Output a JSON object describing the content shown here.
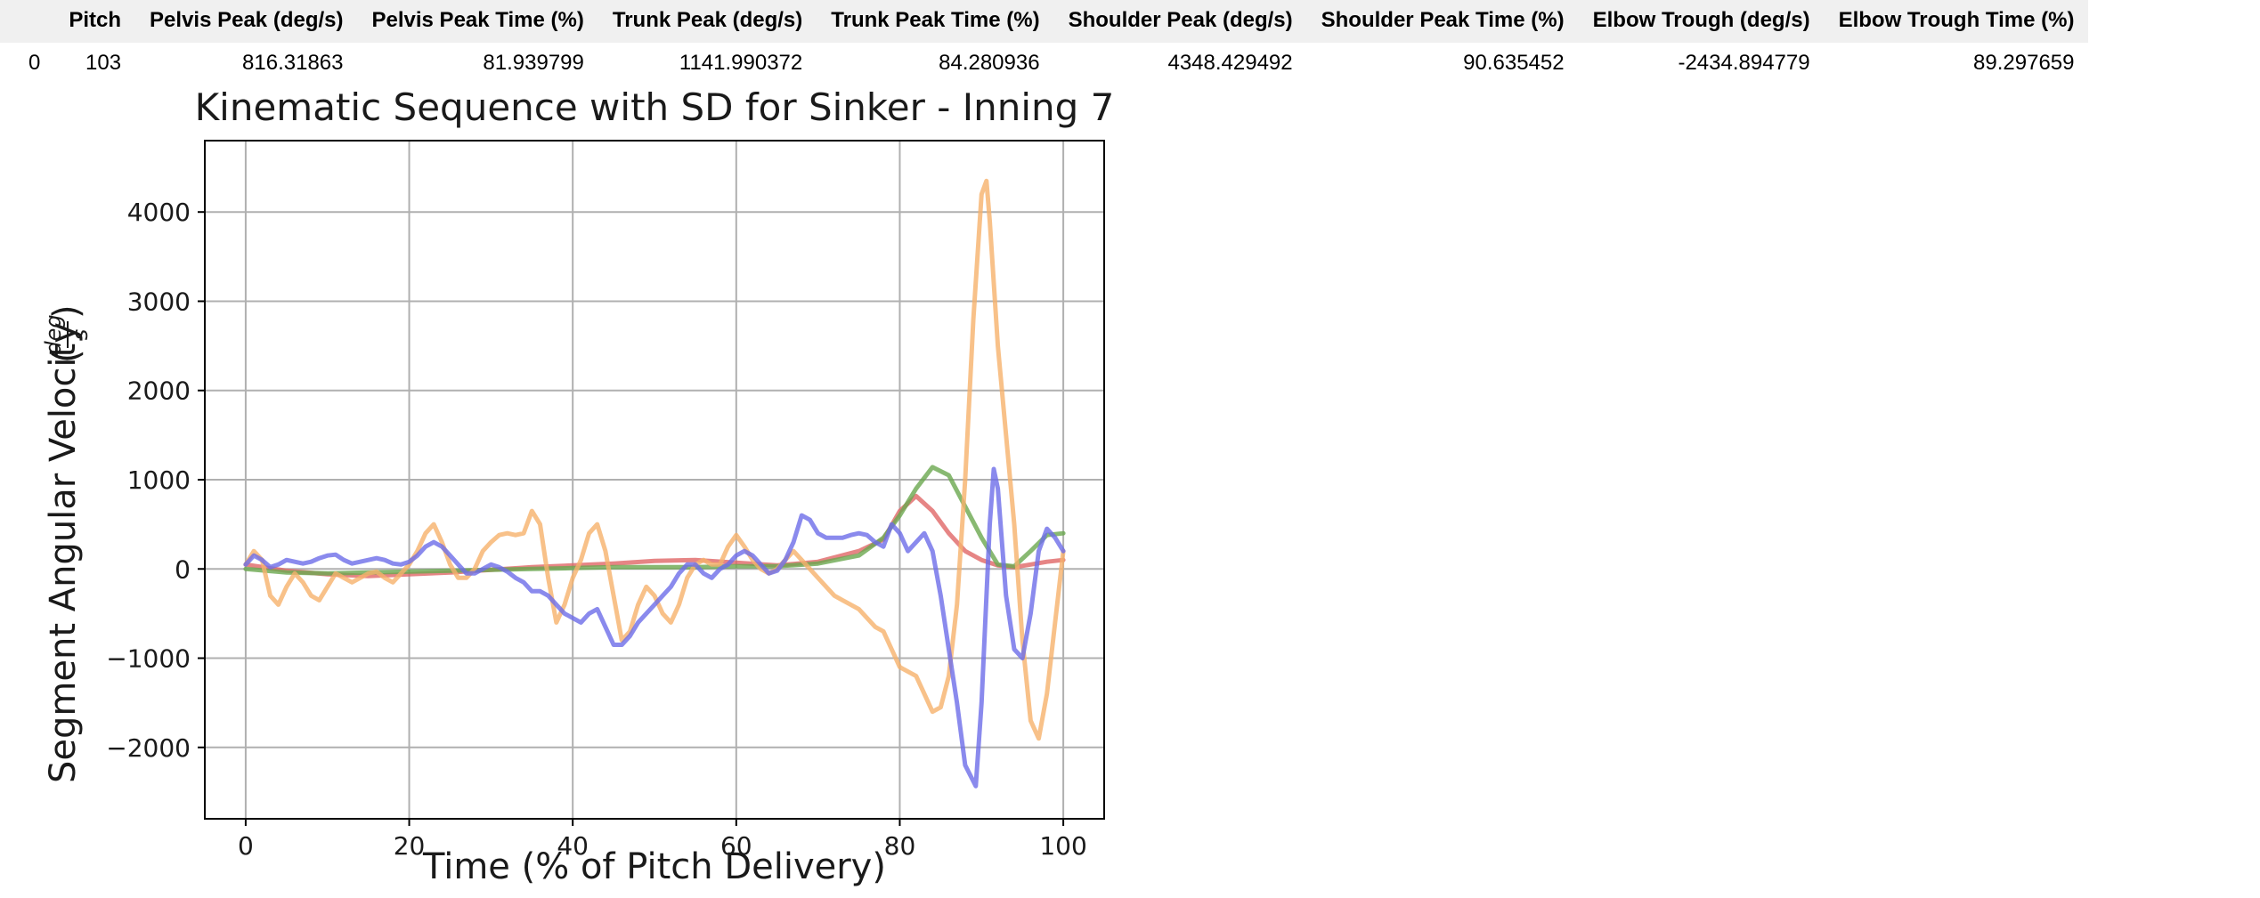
{
  "table": {
    "columns": [
      "",
      "Pitch",
      "Pelvis Peak (deg/s)",
      "Pelvis Peak Time (%)",
      "Trunk Peak (deg/s)",
      "Trunk Peak Time (%)",
      "Shoulder Peak (deg/s)",
      "Shoulder Peak Time (%)",
      "Elbow Trough (deg/s)",
      "Elbow Trough Time (%)"
    ],
    "rows": [
      [
        "0",
        "103",
        "816.31863",
        "81.939799",
        "1141.990372",
        "84.280936",
        "4348.429492",
        "90.635452",
        "-2434.894779",
        "89.297659"
      ]
    ]
  },
  "chart_data": {
    "type": "line",
    "title": "Kinematic Sequence with SD for Sinker - Inning 7",
    "xlabel": "Time (% of Pitch Delivery)",
    "ylabel": "Segment Angular Velocity",
    "ylabel_unit": {
      "numerator": "deg",
      "denominator": "s"
    },
    "xlim": [
      -5,
      105
    ],
    "ylim": [
      -2800,
      4800
    ],
    "xticks": [
      0,
      20,
      40,
      60,
      80,
      100
    ],
    "xtick_labels": [
      "0",
      "20",
      "40",
      "60",
      "80",
      "100"
    ],
    "yticks": [
      -2000,
      -1000,
      0,
      1000,
      2000,
      3000,
      4000
    ],
    "ytick_labels": [
      "−2000",
      "−1000",
      "0",
      "1000",
      "2000",
      "3000",
      "4000"
    ],
    "grid": true,
    "series": [
      {
        "color": "#e06666",
        "points": [
          [
            0,
            50
          ],
          [
            5,
            -20
          ],
          [
            10,
            -60
          ],
          [
            15,
            -80
          ],
          [
            20,
            -60
          ],
          [
            25,
            -40
          ],
          [
            30,
            -10
          ],
          [
            35,
            20
          ],
          [
            40,
            40
          ],
          [
            45,
            60
          ],
          [
            50,
            90
          ],
          [
            55,
            100
          ],
          [
            60,
            70
          ],
          [
            65,
            40
          ],
          [
            70,
            80
          ],
          [
            75,
            200
          ],
          [
            78,
            330
          ],
          [
            80,
            650
          ],
          [
            82,
            816
          ],
          [
            84,
            650
          ],
          [
            86,
            400
          ],
          [
            88,
            200
          ],
          [
            90,
            100
          ],
          [
            92,
            40
          ],
          [
            94,
            20
          ],
          [
            96,
            50
          ],
          [
            98,
            80
          ],
          [
            100,
            100
          ]
        ]
      },
      {
        "color": "#6aa84f",
        "points": [
          [
            0,
            0
          ],
          [
            5,
            -40
          ],
          [
            10,
            -50
          ],
          [
            15,
            -40
          ],
          [
            20,
            -30
          ],
          [
            25,
            -20
          ],
          [
            30,
            -10
          ],
          [
            35,
            0
          ],
          [
            40,
            10
          ],
          [
            45,
            20
          ],
          [
            50,
            20
          ],
          [
            55,
            20
          ],
          [
            60,
            30
          ],
          [
            65,
            30
          ],
          [
            70,
            60
          ],
          [
            75,
            150
          ],
          [
            78,
            350
          ],
          [
            80,
            600
          ],
          [
            82,
            900
          ],
          [
            84,
            1141
          ],
          [
            86,
            1050
          ],
          [
            88,
            700
          ],
          [
            90,
            350
          ],
          [
            92,
            50
          ],
          [
            94,
            30
          ],
          [
            96,
            200
          ],
          [
            98,
            380
          ],
          [
            100,
            400
          ]
        ]
      },
      {
        "color": "#f6b26b",
        "points": [
          [
            0,
            50
          ],
          [
            1,
            200
          ],
          [
            2,
            100
          ],
          [
            3,
            -300
          ],
          [
            4,
            -400
          ],
          [
            5,
            -200
          ],
          [
            6,
            -50
          ],
          [
            7,
            -150
          ],
          [
            8,
            -300
          ],
          [
            9,
            -350
          ],
          [
            10,
            -200
          ],
          [
            11,
            -50
          ],
          [
            12,
            -100
          ],
          [
            13,
            -150
          ],
          [
            14,
            -100
          ],
          [
            15,
            -50
          ],
          [
            16,
            -30
          ],
          [
            17,
            -100
          ],
          [
            18,
            -150
          ],
          [
            19,
            -50
          ],
          [
            20,
            50
          ],
          [
            21,
            200
          ],
          [
            22,
            400
          ],
          [
            23,
            500
          ],
          [
            24,
            300
          ],
          [
            25,
            50
          ],
          [
            26,
            -100
          ],
          [
            27,
            -100
          ],
          [
            28,
            0
          ],
          [
            29,
            200
          ],
          [
            30,
            300
          ],
          [
            31,
            380
          ],
          [
            32,
            400
          ],
          [
            33,
            380
          ],
          [
            34,
            400
          ],
          [
            35,
            650
          ],
          [
            36,
            500
          ],
          [
            37,
            -100
          ],
          [
            38,
            -600
          ],
          [
            39,
            -400
          ],
          [
            40,
            -100
          ],
          [
            41,
            100
          ],
          [
            42,
            400
          ],
          [
            43,
            500
          ],
          [
            44,
            200
          ],
          [
            45,
            -300
          ],
          [
            46,
            -800
          ],
          [
            47,
            -700
          ],
          [
            48,
            -400
          ],
          [
            49,
            -200
          ],
          [
            50,
            -300
          ],
          [
            51,
            -500
          ],
          [
            52,
            -600
          ],
          [
            53,
            -400
          ],
          [
            54,
            -100
          ],
          [
            55,
            50
          ],
          [
            56,
            100
          ],
          [
            57,
            50
          ],
          [
            58,
            50
          ],
          [
            59,
            250
          ],
          [
            60,
            380
          ],
          [
            61,
            250
          ],
          [
            62,
            100
          ],
          [
            63,
            0
          ],
          [
            64,
            -50
          ],
          [
            65,
            0
          ],
          [
            66,
            100
          ],
          [
            67,
            200
          ],
          [
            68,
            100
          ],
          [
            69,
            0
          ],
          [
            70,
            -100
          ],
          [
            71,
            -200
          ],
          [
            72,
            -300
          ],
          [
            73,
            -350
          ],
          [
            74,
            -400
          ],
          [
            75,
            -450
          ],
          [
            76,
            -550
          ],
          [
            77,
            -650
          ],
          [
            78,
            -700
          ],
          [
            79,
            -900
          ],
          [
            80,
            -1100
          ],
          [
            81,
            -1150
          ],
          [
            82,
            -1200
          ],
          [
            83,
            -1400
          ],
          [
            84,
            -1600
          ],
          [
            85,
            -1550
          ],
          [
            86,
            -1200
          ],
          [
            87,
            -400
          ],
          [
            88,
            1000
          ],
          [
            89,
            2800
          ],
          [
            90,
            4200
          ],
          [
            90.6,
            4348
          ],
          [
            91,
            3900
          ],
          [
            92,
            2500
          ],
          [
            93,
            1500
          ],
          [
            94,
            500
          ],
          [
            95,
            -800
          ],
          [
            96,
            -1700
          ],
          [
            97,
            -1900
          ],
          [
            98,
            -1400
          ],
          [
            99,
            -600
          ],
          [
            100,
            200
          ]
        ]
      },
      {
        "color": "#6d6de8",
        "points": [
          [
            0,
            50
          ],
          [
            1,
            150
          ],
          [
            2,
            100
          ],
          [
            3,
            20
          ],
          [
            4,
            50
          ],
          [
            5,
            100
          ],
          [
            6,
            80
          ],
          [
            7,
            60
          ],
          [
            8,
            80
          ],
          [
            9,
            120
          ],
          [
            10,
            150
          ],
          [
            11,
            160
          ],
          [
            12,
            100
          ],
          [
            13,
            60
          ],
          [
            14,
            80
          ],
          [
            15,
            100
          ],
          [
            16,
            120
          ],
          [
            17,
            100
          ],
          [
            18,
            60
          ],
          [
            19,
            50
          ],
          [
            20,
            80
          ],
          [
            21,
            150
          ],
          [
            22,
            250
          ],
          [
            23,
            300
          ],
          [
            24,
            250
          ],
          [
            25,
            150
          ],
          [
            26,
            50
          ],
          [
            27,
            -50
          ],
          [
            28,
            -50
          ],
          [
            29,
            0
          ],
          [
            30,
            50
          ],
          [
            31,
            20
          ],
          [
            32,
            -30
          ],
          [
            33,
            -100
          ],
          [
            34,
            -150
          ],
          [
            35,
            -250
          ],
          [
            36,
            -250
          ],
          [
            37,
            -300
          ],
          [
            38,
            -400
          ],
          [
            39,
            -500
          ],
          [
            40,
            -550
          ],
          [
            41,
            -600
          ],
          [
            42,
            -500
          ],
          [
            43,
            -450
          ],
          [
            44,
            -650
          ],
          [
            45,
            -850
          ],
          [
            46,
            -850
          ],
          [
            47,
            -750
          ],
          [
            48,
            -600
          ],
          [
            49,
            -500
          ],
          [
            50,
            -400
          ],
          [
            51,
            -300
          ],
          [
            52,
            -200
          ],
          [
            53,
            -50
          ],
          [
            54,
            50
          ],
          [
            55,
            50
          ],
          [
            56,
            -50
          ],
          [
            57,
            -100
          ],
          [
            58,
            0
          ],
          [
            59,
            50
          ],
          [
            60,
            150
          ],
          [
            61,
            200
          ],
          [
            62,
            150
          ],
          [
            63,
            50
          ],
          [
            64,
            -50
          ],
          [
            65,
            -20
          ],
          [
            66,
            100
          ],
          [
            67,
            300
          ],
          [
            68,
            600
          ],
          [
            69,
            550
          ],
          [
            70,
            400
          ],
          [
            71,
            350
          ],
          [
            72,
            350
          ],
          [
            73,
            350
          ],
          [
            74,
            380
          ],
          [
            75,
            400
          ],
          [
            76,
            380
          ],
          [
            77,
            300
          ],
          [
            78,
            250
          ],
          [
            79,
            500
          ],
          [
            80,
            400
          ],
          [
            81,
            200
          ],
          [
            82,
            300
          ],
          [
            83,
            400
          ],
          [
            84,
            200
          ],
          [
            85,
            -300
          ],
          [
            86,
            -900
          ],
          [
            87,
            -1500
          ],
          [
            88,
            -2200
          ],
          [
            89.3,
            -2434
          ],
          [
            90,
            -1500
          ],
          [
            91,
            500
          ],
          [
            91.5,
            1120
          ],
          [
            92,
            900
          ],
          [
            93,
            -300
          ],
          [
            94,
            -900
          ],
          [
            95,
            -1000
          ],
          [
            96,
            -500
          ],
          [
            97,
            200
          ],
          [
            98,
            450
          ],
          [
            99,
            350
          ],
          [
            100,
            200
          ]
        ]
      }
    ]
  }
}
